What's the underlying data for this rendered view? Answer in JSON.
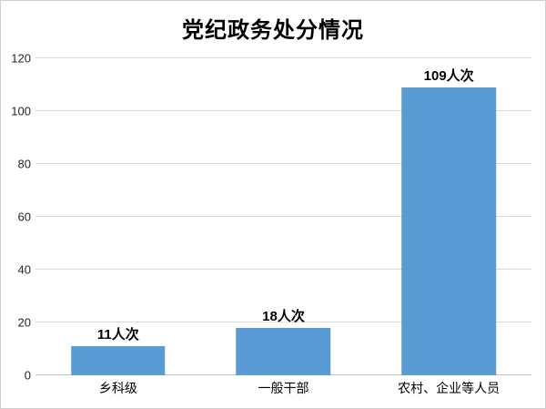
{
  "chart_data": {
    "type": "bar",
    "title": "党纪政务处分情况",
    "categories": [
      "乡科级",
      "一般干部",
      "农村、企业等人员"
    ],
    "values": [
      11,
      18,
      109
    ],
    "data_labels": [
      "11人次",
      "18人次",
      "109人次"
    ],
    "unit": "人次",
    "xlabel": "",
    "ylabel": "",
    "ylim": [
      0,
      120
    ],
    "yticks": [
      0,
      20,
      40,
      60,
      80,
      100,
      120
    ],
    "grid": "horizontal",
    "legend": "none",
    "bar_color": "#5b9bd5"
  },
  "colors": {
    "bar": "#5b9bd5",
    "gridline": "#d9d9d9",
    "axis_line": "#bfbfbf",
    "text": "#000000",
    "tick_text": "#262626",
    "border": "#cfcfcf",
    "background": "#ffffff"
  }
}
